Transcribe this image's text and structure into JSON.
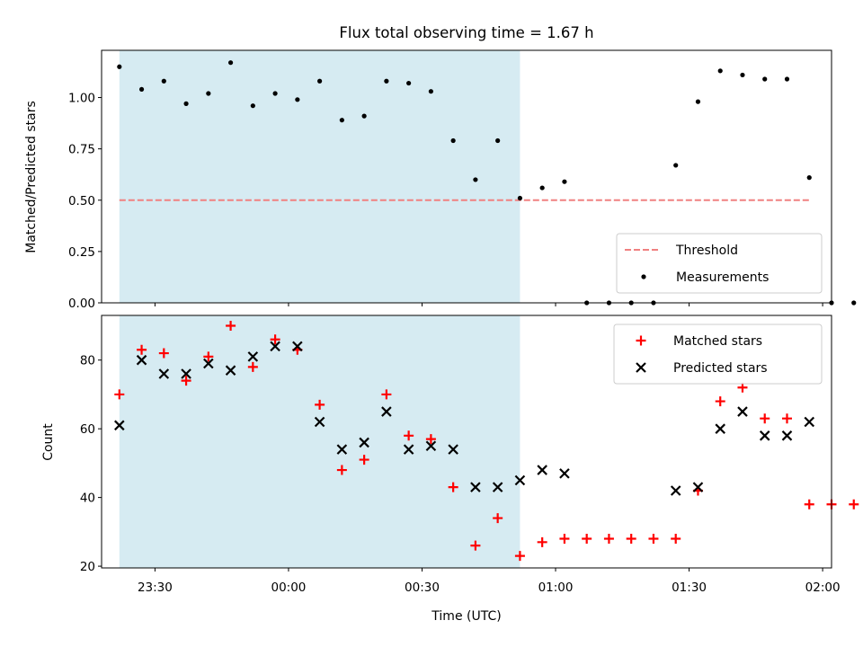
{
  "chart_data": [
    {
      "type": "scatter",
      "title": "Flux total observing time = 1.67 h",
      "ylabel": "Matched/Predicted stars",
      "xlim": [
        "23:18",
        "02:02"
      ],
      "ylim": [
        0,
        1.23
      ],
      "yticks": [
        "0.00",
        "0.25",
        "0.50",
        "0.75",
        "1.00"
      ],
      "shaded_interval": [
        "23:22",
        "00:52"
      ],
      "shade_color": "#add8e6",
      "legend_position": "lower right",
      "threshold": {
        "name": "Threshold",
        "value": 0.5,
        "color": "#f08080",
        "style": "dashed",
        "x_range": [
          "23:22",
          "01:57"
        ]
      },
      "series": [
        {
          "name": "Measurements",
          "marker": "dot",
          "color": "#000000",
          "points": [
            [
              "23:22",
              1.15
            ],
            [
              "23:27",
              1.04
            ],
            [
              "23:32",
              1.08
            ],
            [
              "23:37",
              0.97
            ],
            [
              "23:42",
              1.02
            ],
            [
              "23:47",
              1.17
            ],
            [
              "23:52",
              0.96
            ],
            [
              "23:57",
              1.02
            ],
            [
              "00:02",
              0.99
            ],
            [
              "00:07",
              1.08
            ],
            [
              "00:12",
              0.89
            ],
            [
              "00:17",
              0.91
            ],
            [
              "00:22",
              1.08
            ],
            [
              "00:27",
              1.07
            ],
            [
              "00:32",
              1.03
            ],
            [
              "00:37",
              0.79
            ],
            [
              "00:42",
              0.6
            ],
            [
              "00:47",
              0.79
            ],
            [
              "00:52",
              0.51
            ],
            [
              "00:57",
              0.56
            ],
            [
              "01:02",
              0.59
            ],
            [
              "01:07",
              0.0
            ],
            [
              "01:12",
              0.0
            ],
            [
              "01:17",
              0.0
            ],
            [
              "01:22",
              0.0
            ],
            [
              "01:27",
              0.67
            ],
            [
              "01:32",
              0.98
            ],
            [
              "01:37",
              1.13
            ],
            [
              "01:42",
              1.11
            ],
            [
              "01:47",
              1.09
            ],
            [
              "01:52",
              1.09
            ],
            [
              "01:57",
              0.61
            ],
            [
              "02:02",
              0.0
            ],
            [
              "02:07",
              0.0
            ]
          ]
        }
      ]
    },
    {
      "type": "scatter",
      "xlabel": "Time (UTC)",
      "ylabel": "Count",
      "xticks": [
        "23:30",
        "00:00",
        "00:30",
        "01:00",
        "01:30",
        "02:00"
      ],
      "yticks": [
        "20",
        "40",
        "60",
        "80"
      ],
      "ylim": [
        19.5,
        93
      ],
      "legend_position": "upper right",
      "series": [
        {
          "name": "Matched stars",
          "marker": "plus",
          "color": "#ff0000",
          "points": [
            [
              "23:22",
              70
            ],
            [
              "23:27",
              83
            ],
            [
              "23:32",
              82
            ],
            [
              "23:37",
              74
            ],
            [
              "23:42",
              81
            ],
            [
              "23:47",
              90
            ],
            [
              "23:52",
              78
            ],
            [
              "23:57",
              86
            ],
            [
              "00:02",
              83
            ],
            [
              "00:07",
              67
            ],
            [
              "00:12",
              48
            ],
            [
              "00:17",
              51
            ],
            [
              "00:22",
              70
            ],
            [
              "00:27",
              58
            ],
            [
              "00:32",
              57
            ],
            [
              "00:37",
              43
            ],
            [
              "00:42",
              26
            ],
            [
              "00:47",
              34
            ],
            [
              "00:52",
              23
            ],
            [
              "00:57",
              27
            ],
            [
              "01:02",
              28
            ],
            [
              "01:07",
              28
            ],
            [
              "01:12",
              28
            ],
            [
              "01:17",
              28
            ],
            [
              "01:22",
              28
            ],
            [
              "01:27",
              28
            ],
            [
              "01:32",
              42
            ],
            [
              "01:37",
              68
            ],
            [
              "01:42",
              72
            ],
            [
              "01:47",
              63
            ],
            [
              "01:52",
              63
            ],
            [
              "01:57",
              38
            ],
            [
              "02:02",
              38
            ],
            [
              "02:07",
              38
            ]
          ]
        },
        {
          "name": "Predicted stars",
          "marker": "x",
          "color": "#000000",
          "points": [
            [
              "23:22",
              61
            ],
            [
              "23:27",
              80
            ],
            [
              "23:32",
              76
            ],
            [
              "23:37",
              76
            ],
            [
              "23:42",
              79
            ],
            [
              "23:47",
              77
            ],
            [
              "23:52",
              81
            ],
            [
              "23:57",
              84
            ],
            [
              "00:02",
              84
            ],
            [
              "00:07",
              62
            ],
            [
              "00:12",
              54
            ],
            [
              "00:17",
              56
            ],
            [
              "00:22",
              65
            ],
            [
              "00:27",
              54
            ],
            [
              "00:32",
              55
            ],
            [
              "00:37",
              54
            ],
            [
              "00:42",
              43
            ],
            [
              "00:47",
              43
            ],
            [
              "00:52",
              45
            ],
            [
              "00:57",
              48
            ],
            [
              "01:02",
              47
            ],
            [
              "01:27",
              42
            ],
            [
              "01:32",
              43
            ],
            [
              "01:37",
              60
            ],
            [
              "01:42",
              65
            ],
            [
              "01:47",
              58
            ],
            [
              "01:52",
              58
            ],
            [
              "01:57",
              62
            ]
          ]
        }
      ]
    }
  ]
}
